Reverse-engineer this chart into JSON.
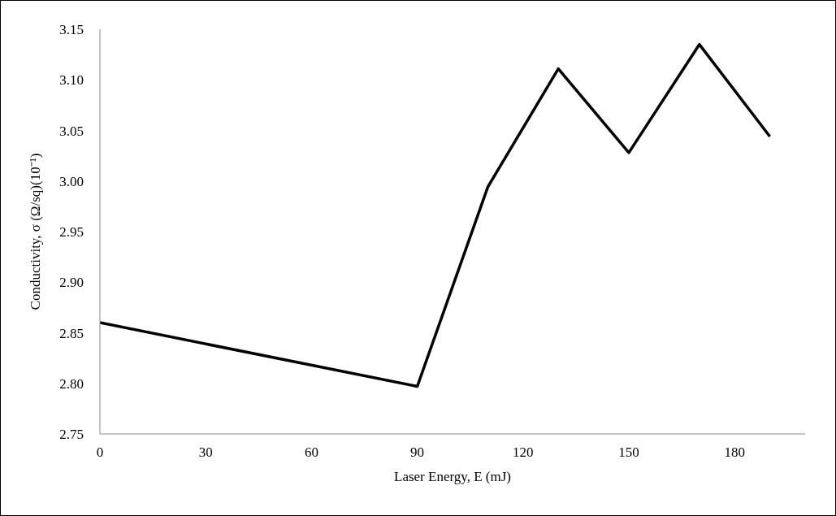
{
  "chart_data": {
    "type": "line",
    "xlabel": "Laser Energy, E (mJ)",
    "ylabel": "Conductivity, σ (Ω/sq)(10⁻¹)",
    "x": [
      0,
      90,
      110,
      130,
      150,
      170,
      190
    ],
    "series": [
      {
        "color": "#000000",
        "values": [
          2.86,
          2.797,
          2.994,
          3.111,
          3.028,
          3.135,
          3.044
        ]
      }
    ],
    "xlim": [
      0,
      200
    ],
    "xticks": [
      0,
      30,
      60,
      90,
      120,
      150,
      180
    ],
    "ylim": [
      2.75,
      3.15
    ],
    "yticks": [
      2.75,
      {
        "value": 2.8,
        "label": "2.80"
      },
      2.85,
      {
        "value": 2.9,
        "label": "2.90"
      },
      2.95,
      {
        "value": 3.0,
        "label": "3.00"
      },
      3.05,
      {
        "value": 3.1,
        "label": "3.10"
      },
      3.15
    ],
    "grid": false,
    "legend": false,
    "marker": "none",
    "line_style": "solid"
  }
}
